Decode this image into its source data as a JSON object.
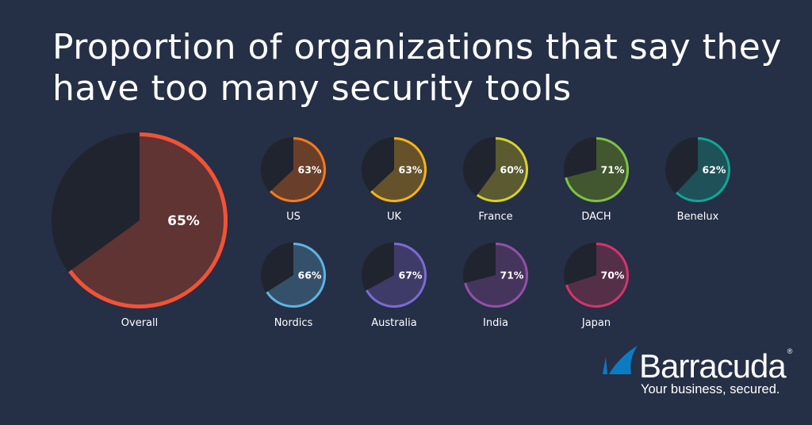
{
  "title": "Proportion of organizations that say they have too many security tools",
  "chart_data": {
    "type": "pie",
    "title": "Proportion of organizations that say they have too many security tools",
    "unit": "%",
    "remainder_color": "#20242f",
    "series": [
      {
        "name": "Overall",
        "value": 65,
        "color": "#f05337",
        "fill": "#5f3432"
      },
      {
        "name": "US",
        "value": 63,
        "color": "#f7791b",
        "fill": "#6a3f2a"
      },
      {
        "name": "UK",
        "value": 63,
        "color": "#f5b415",
        "fill": "#65522a"
      },
      {
        "name": "France",
        "value": 60,
        "color": "#d6d22a",
        "fill": "#5b5a30"
      },
      {
        "name": "DACH",
        "value": 71,
        "color": "#7dc242",
        "fill": "#42562f"
      },
      {
        "name": "Benelux",
        "value": 62,
        "color": "#0fa894",
        "fill": "#1e5158"
      },
      {
        "name": "Nordics",
        "value": 66,
        "color": "#5eb3e4",
        "fill": "#35506a"
      },
      {
        "name": "Australia",
        "value": 67,
        "color": "#7b6bd6",
        "fill": "#3f3b68"
      },
      {
        "name": "India",
        "value": 71,
        "color": "#9151a8",
        "fill": "#45355d"
      },
      {
        "name": "Japan",
        "value": 70,
        "color": "#d4356a",
        "fill": "#552f48"
      }
    ]
  },
  "logo": {
    "brand": "Barracuda",
    "registered": "®",
    "tagline": "Your business, secured.",
    "color": "#0b7cc3"
  }
}
